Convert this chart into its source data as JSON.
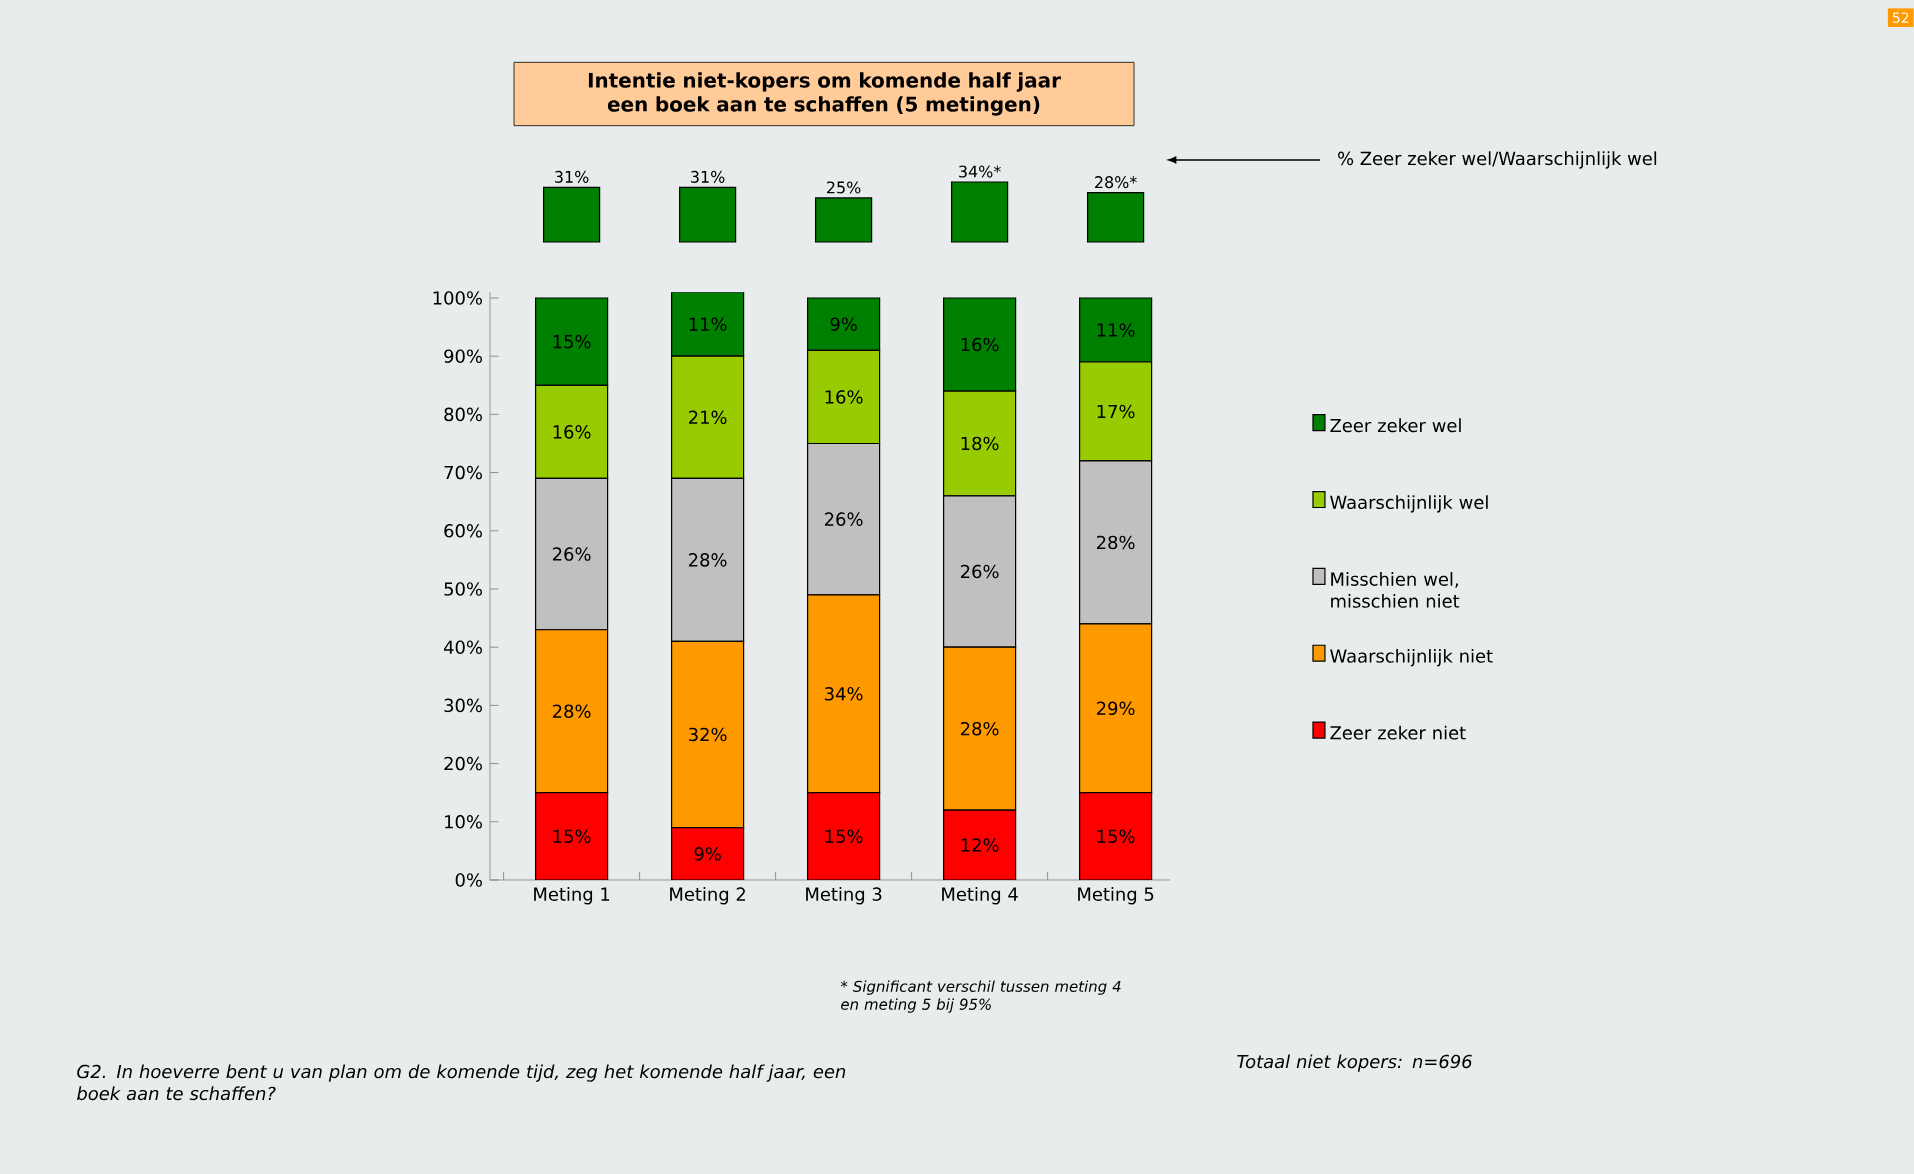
{
  "chart_data": [
    {
      "type": "bar",
      "title": "Intentie niet-kopers om komende half jaar een boek aan te schaffen (5 metingen)",
      "categories": [
        null,
        null,
        null,
        null,
        null
      ],
      "values": [
        31,
        31,
        25,
        34,
        28
      ],
      "value_labels": [
        "31%",
        "31%",
        "25%",
        "34%*",
        "28%*"
      ],
      "color": "#008000",
      "annotations": [
        "% Zeer zeker wel/Waarschijnlijk wel",
        "52"
      ]
    },
    {
      "type": "bar",
      "stacked": true,
      "categories": [
        "Meting 1",
        "Meting 2",
        "Meting 3",
        "Meting 4",
        "Meting 5"
      ],
      "series": [
        {
          "name": "Zeer zeker niet",
          "color": "#ff0000",
          "values": [
            15,
            9,
            15,
            12,
            15
          ],
          "value_labels": [
            "15%",
            "9%",
            "15%",
            "12%",
            "15%"
          ]
        },
        {
          "name": "Waarschijnlijk niet",
          "color": "#ff9900",
          "values": [
            28,
            32,
            34,
            28,
            29
          ],
          "value_labels": [
            "28%",
            "32%",
            "34%",
            "28%",
            "29%"
          ]
        },
        {
          "name": "Misschien wel, misschien niet",
          "color": "#c0c0c0",
          "values": [
            26,
            28,
            26,
            26,
            28
          ],
          "value_labels": [
            "26%",
            "28%",
            "26%",
            "26%",
            "28%"
          ]
        },
        {
          "name": "Waarschijnlijk wel",
          "color": "#99cc00",
          "values": [
            16,
            21,
            16,
            18,
            17
          ],
          "value_labels": [
            "16%",
            "21%",
            "16%",
            "18%",
            "17%"
          ]
        },
        {
          "name": "Zeer zeker wel",
          "color": "#008000",
          "values": [
            15,
            11,
            9,
            16,
            11
          ],
          "value_labels": [
            "15%",
            "11%",
            "9%",
            "16%",
            "11%"
          ]
        }
      ],
      "ylim": [
        0,
        101
      ],
      "yticks": [
        {
          "value": 0,
          "label": "0%"
        },
        {
          "value": 10,
          "label": "10%"
        },
        {
          "value": 20,
          "label": "20%"
        },
        {
          "value": 30,
          "label": "30%"
        },
        {
          "value": 40,
          "label": "40%"
        },
        {
          "value": 50,
          "label": "50%"
        },
        {
          "value": 60,
          "label": "60%"
        },
        {
          "value": 70,
          "label": "70%"
        },
        {
          "value": 80,
          "label": "80%"
        },
        {
          "value": 90,
          "label": "90%"
        },
        {
          "value": 100,
          "label": "100%"
        }
      ],
      "legend": "right",
      "annotations": [
        "* Significant verschil tussen meting 4 en meting 5 bij 95%",
        "G2. In hoeverre bent u van plan om de komende tijd, zeg het komende half jaar, een boek aan te schaffen?",
        "Totaal niet kopers: n=696"
      ]
    }
  ]
}
